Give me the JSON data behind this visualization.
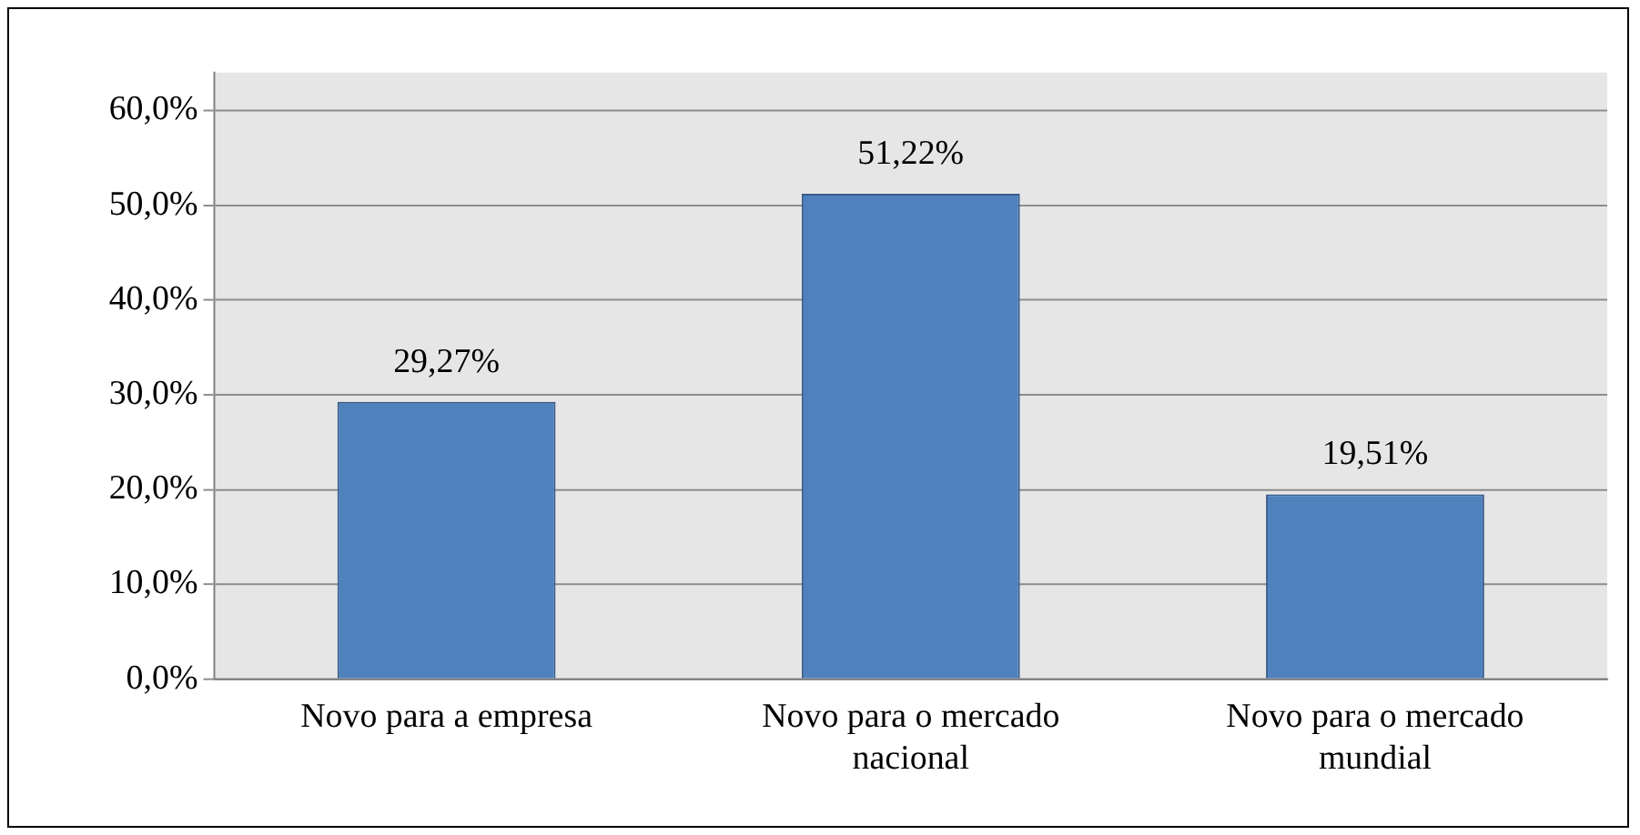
{
  "chart_data": {
    "type": "bar",
    "categories": [
      "Novo para a empresa",
      "Novo para o mercado nacional",
      "Novo para o mercado mundial"
    ],
    "values": [
      29.27,
      51.22,
      19.51
    ],
    "value_labels": [
      "29,27%",
      "51,22%",
      "19,51%"
    ],
    "color": "#4f81bd",
    "ylim": [
      0,
      64
    ],
    "yticks": [
      {
        "value": 0,
        "label": "0,0%"
      },
      {
        "value": 10,
        "label": "10,0%"
      },
      {
        "value": 20,
        "label": "20,0%"
      },
      {
        "value": 30,
        "label": "30,0%"
      },
      {
        "value": 40,
        "label": "40,0%"
      },
      {
        "value": 50,
        "label": "50,0%"
      },
      {
        "value": 60,
        "label": "60,0%"
      }
    ],
    "grid": "y"
  }
}
